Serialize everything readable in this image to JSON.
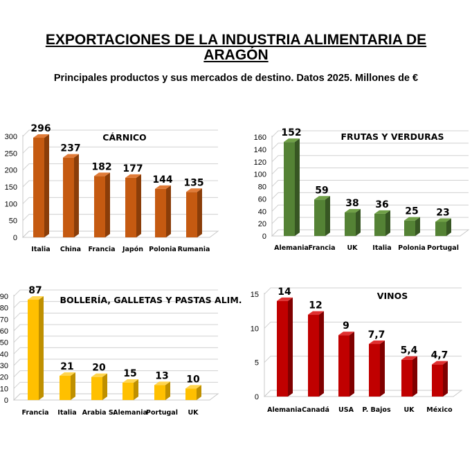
{
  "header": {
    "title_line1": "EXPORTACIONES DE LA INDUSTRIA  ALIMENTARIA DE",
    "title_line2": "ARAGÓN",
    "subtitle": "Principales productos y sus mercados de destino. Datos 2025. Millones de €"
  },
  "chart_data": [
    {
      "type": "bar",
      "title": "CÁRNICO",
      "categories": [
        "Italia",
        "China",
        "Francia",
        "Japón",
        "Polonia",
        "Rumania"
      ],
      "values": [
        296,
        237,
        182,
        177,
        144,
        135
      ],
      "value_labels": [
        "296",
        "237",
        "182",
        "177",
        "144",
        "135"
      ],
      "ylim": [
        0,
        300
      ],
      "yticks": [
        "0",
        "50",
        "100",
        "150",
        "200",
        "250",
        "300"
      ],
      "grid": true,
      "colors": {
        "front": "#C55A11",
        "side": "#8A3D09",
        "top": "#E07B38"
      }
    },
    {
      "type": "bar",
      "title": "FRUTAS Y VERDURAS",
      "categories": [
        "Alemania",
        "Francia",
        "UK",
        "Italia",
        "Polonia",
        "Portugal"
      ],
      "values": [
        152,
        59,
        38,
        36,
        25,
        23
      ],
      "value_labels": [
        "152",
        "59",
        "38",
        "36",
        "25",
        "23"
      ],
      "ylim": [
        0,
        160
      ],
      "yticks": [
        "0",
        "20",
        "40",
        "60",
        "80",
        "100",
        "120",
        "140",
        "160"
      ],
      "grid": true,
      "colors": {
        "front": "#548235",
        "side": "#375623",
        "top": "#70A047"
      }
    },
    {
      "type": "bar",
      "title": "BOLLERÍA, GALLETAS Y PASTAS ALIM.",
      "categories": [
        "Francia",
        "Italia",
        "Arabia S.",
        "Alemania",
        "Portugal",
        "UK"
      ],
      "values": [
        87,
        21,
        20,
        15,
        13,
        10
      ],
      "value_labels": [
        "87",
        "21",
        "20",
        "15",
        "13",
        "10"
      ],
      "ylim": [
        0,
        90
      ],
      "yticks": [
        "0",
        "10",
        "20",
        "30",
        "40",
        "50",
        "60",
        "70",
        "80",
        "90"
      ],
      "grid": true,
      "colors": {
        "front": "#FFC000",
        "side": "#BF9000",
        "top": "#FFD54F"
      }
    },
    {
      "type": "bar",
      "title": "VINOS",
      "categories": [
        "Alemania",
        "Canadá",
        "USA",
        "P. Bajos",
        "UK",
        "México"
      ],
      "values": [
        14,
        12,
        9,
        7.7,
        5.4,
        4.7
      ],
      "value_labels": [
        "14",
        "12",
        "9",
        "7,7",
        "5,4",
        "4,7"
      ],
      "ylim": [
        0,
        15
      ],
      "yticks": [
        "0",
        "5",
        "10",
        "15"
      ],
      "grid": true,
      "colors": {
        "front": "#C00000",
        "side": "#800000",
        "top": "#E03030"
      }
    }
  ]
}
